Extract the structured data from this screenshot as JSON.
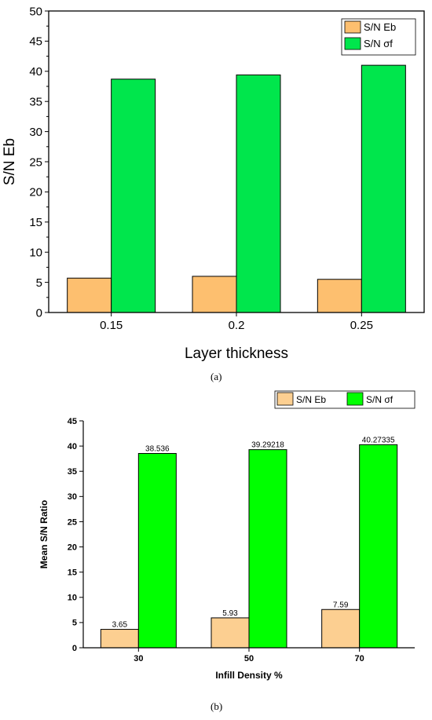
{
  "chart_data": [
    {
      "type": "bar",
      "title": "",
      "xlabel": "Layer thickness",
      "ylabel": "S/N Eb",
      "categories": [
        "0.15",
        "0.2",
        "0.25"
      ],
      "series": [
        {
          "name": "S/N Eb",
          "color": "#FDBF6F",
          "values": [
            5.7,
            6.0,
            5.5
          ]
        },
        {
          "name": "S/N σf",
          "color": "#00E64C",
          "values": [
            38.7,
            39.4,
            41.0
          ]
        }
      ],
      "ylim": [
        0,
        50
      ],
      "yticks": [
        "0",
        "5",
        "10",
        "15",
        "20",
        "25",
        "30",
        "35",
        "40",
        "45",
        "50"
      ],
      "grid": false,
      "legend": "top-right",
      "caption": "(a)"
    },
    {
      "type": "bar",
      "title": "",
      "xlabel": "Infill Density %",
      "ylabel": "Mean S/N Ratio",
      "categories": [
        "30",
        "50",
        "70"
      ],
      "series": [
        {
          "name": "S/N Eb",
          "color": "#FCCF91",
          "values": [
            3.65,
            5.93,
            7.59
          ],
          "labels": [
            "3.65",
            "5.93",
            "7.59"
          ]
        },
        {
          "name": "S/N σf",
          "color": "#00FF00",
          "values": [
            38.536,
            39.29218,
            40.27335
          ],
          "labels": [
            "38.536",
            "39.29218",
            "40.27335"
          ]
        }
      ],
      "ylim": [
        0,
        45
      ],
      "yticks": [
        "0",
        "5",
        "10",
        "15",
        "20",
        "25",
        "30",
        "35",
        "40",
        "45"
      ],
      "grid": false,
      "legend": "top",
      "caption": "(b)"
    }
  ]
}
